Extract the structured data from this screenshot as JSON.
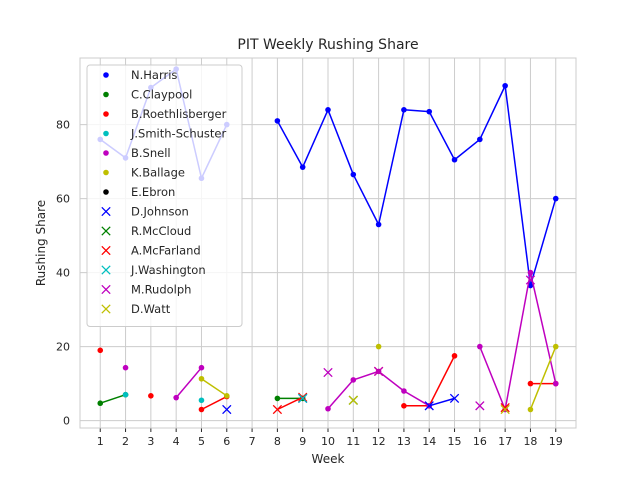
{
  "chart_data": {
    "type": "line",
    "title": "PIT Weekly Rushing Share",
    "xlabel": "Week",
    "ylabel": "Rushing Share",
    "x_ticks": [
      1,
      2,
      3,
      4,
      5,
      6,
      7,
      8,
      9,
      10,
      11,
      12,
      13,
      14,
      15,
      16,
      17,
      18,
      19
    ],
    "y_ticks": [
      0,
      20,
      40,
      60,
      80
    ],
    "xlim": [
      0.2,
      19.8
    ],
    "ylim": [
      -2,
      98
    ],
    "grid": true,
    "legend_position": "upper left",
    "series": [
      {
        "name": "N.Harris",
        "color": "#0000ff",
        "marker": "dot",
        "points": [
          [
            1,
            76
          ],
          [
            2,
            71
          ],
          [
            3,
            90
          ],
          [
            4,
            95
          ],
          [
            5,
            65.5
          ],
          [
            6,
            80
          ],
          [
            8,
            81
          ],
          [
            9,
            68.5
          ],
          [
            10,
            84
          ],
          [
            11,
            66.5
          ],
          [
            12,
            53
          ],
          [
            13,
            84
          ],
          [
            14,
            83.5
          ],
          [
            15,
            70.5
          ],
          [
            16,
            76
          ],
          [
            17,
            90.5
          ],
          [
            18,
            36.5
          ],
          [
            19,
            60
          ]
        ]
      },
      {
        "name": "C.Claypool",
        "color": "#008000",
        "marker": "dot",
        "points": [
          [
            1,
            4.7
          ],
          [
            2,
            7
          ],
          [
            8,
            6
          ],
          [
            9,
            6
          ]
        ]
      },
      {
        "name": "B.Roethlisberger",
        "color": "#ff0000",
        "marker": "dot",
        "points": [
          [
            1,
            19
          ],
          [
            3,
            6.7
          ],
          [
            5,
            3
          ],
          [
            6,
            6.5
          ],
          [
            13,
            4
          ],
          [
            14,
            4
          ],
          [
            15,
            17.5
          ],
          [
            18,
            10
          ],
          [
            19,
            10
          ]
        ]
      },
      {
        "name": "J.Smith-Schuster",
        "color": "#00bfbf",
        "marker": "dot",
        "points": [
          [
            2,
            7
          ],
          [
            5,
            5.5
          ]
        ]
      },
      {
        "name": "B.Snell",
        "color": "#bf00bf",
        "marker": "dot",
        "points": [
          [
            2,
            14.3
          ],
          [
            4,
            6.2
          ],
          [
            5,
            14.3
          ],
          [
            10,
            3.2
          ],
          [
            11,
            11
          ],
          [
            12,
            13.3
          ],
          [
            13,
            8
          ],
          [
            14,
            4
          ],
          [
            16,
            20
          ],
          [
            17,
            3
          ],
          [
            18,
            40
          ],
          [
            19,
            10
          ]
        ]
      },
      {
        "name": "K.Ballage",
        "color": "#bfbf00",
        "marker": "dot",
        "points": [
          [
            5,
            11.3
          ],
          [
            6,
            6.7
          ],
          [
            12,
            20
          ],
          [
            18,
            3
          ],
          [
            19,
            20
          ]
        ]
      },
      {
        "name": "E.Ebron",
        "color": "#000000",
        "marker": "dot",
        "points": []
      },
      {
        "name": "D.Johnson",
        "color": "#0000ff",
        "marker": "x",
        "points": [
          [
            6,
            3
          ],
          [
            9,
            6
          ],
          [
            14,
            4
          ],
          [
            15,
            6
          ]
        ]
      },
      {
        "name": "R.McCloud",
        "color": "#008000",
        "marker": "x",
        "points": [
          [
            11,
            5.5
          ]
        ]
      },
      {
        "name": "A.McFarland",
        "color": "#ff0000",
        "marker": "x",
        "points": [
          [
            8,
            3
          ],
          [
            9,
            6.3
          ],
          [
            12,
            13.3
          ],
          [
            17,
            3.5
          ]
        ]
      },
      {
        "name": "J.Washington",
        "color": "#00bfbf",
        "marker": "x",
        "points": [
          [
            9,
            6
          ]
        ]
      },
      {
        "name": "M.Rudolph",
        "color": "#bf00bf",
        "marker": "x",
        "points": [
          [
            10,
            13
          ],
          [
            12,
            13.3
          ],
          [
            16,
            4
          ],
          [
            18,
            38
          ]
        ]
      },
      {
        "name": "D.Watt",
        "color": "#bfbf00",
        "marker": "x",
        "points": [
          [
            11,
            5.5
          ],
          [
            17,
            3
          ]
        ]
      }
    ]
  }
}
